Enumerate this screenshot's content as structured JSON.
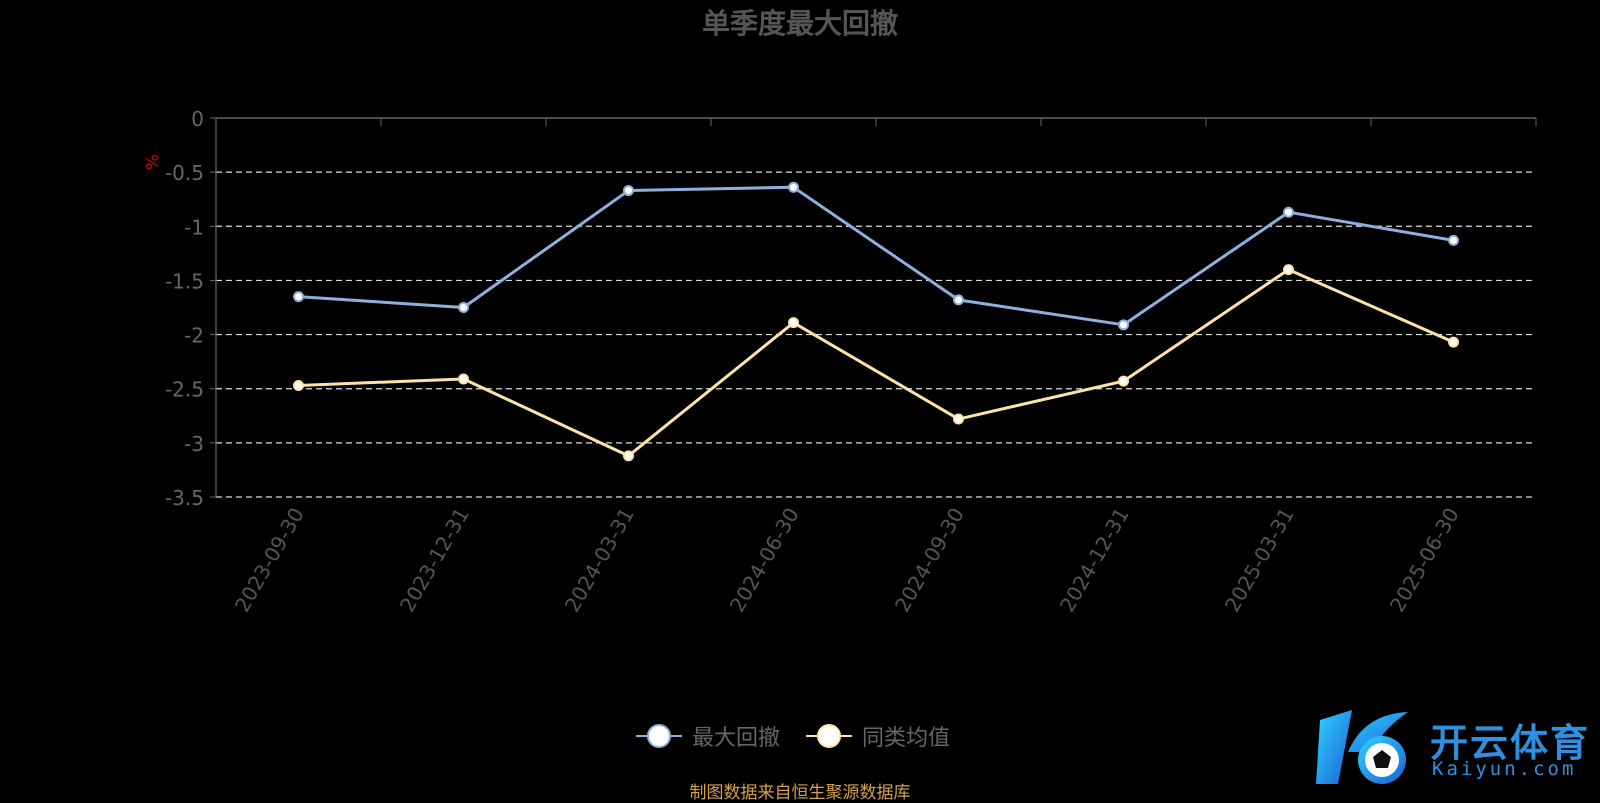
{
  "chart_data": {
    "type": "line",
    "title": "单季度最大回撤",
    "ylabel": "%",
    "xlabel": "",
    "categories": [
      "2023-09-30",
      "2023-12-31",
      "2024-03-31",
      "2024-06-30",
      "2024-09-30",
      "2024-12-31",
      "2025-03-31",
      "2025-06-30"
    ],
    "ylim": [
      -3.5,
      0
    ],
    "yticks": [
      0,
      -0.5,
      -1,
      -1.5,
      -2,
      -2.5,
      -3,
      -3.5
    ],
    "ytick_labels": [
      "0",
      "-0.5",
      "-1",
      "-1.5",
      "-2",
      "-2.5",
      "-3",
      "-3.5"
    ],
    "grid": true,
    "legend_position": "bottom",
    "series": [
      {
        "name": "最大回撤",
        "color": "#8fb0df",
        "values": [
          -1.65,
          -1.75,
          -0.67,
          -0.64,
          -1.68,
          -1.91,
          -0.87,
          -1.13
        ]
      },
      {
        "name": "同类均值",
        "color": "#fde3a7",
        "values": [
          -2.47,
          -2.41,
          -3.12,
          -1.89,
          -2.78,
          -2.43,
          -1.4,
          -2.07
        ]
      }
    ]
  },
  "source_note": "制图数据来自恒生聚源数据库",
  "brand": {
    "name": "开云体育",
    "url": "Kaiyun.com"
  }
}
